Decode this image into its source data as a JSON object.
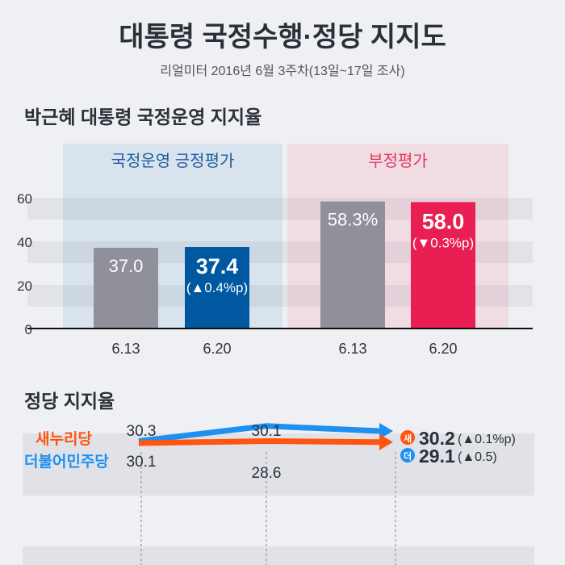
{
  "title": "대통령 국정수행·정당 지지도",
  "subtitle": "리얼미터 2016년 6월 3주차(13일~17일 조사)",
  "chart_data": [
    {
      "type": "bar",
      "title": "박근혜 대통령 국정운영 지지율",
      "groups": [
        {
          "label": "국정운영 긍정평가",
          "color": "#0058a0",
          "categories": [
            "6.13",
            "6.20"
          ],
          "values": [
            37.0,
            37.4
          ],
          "labels": [
            "37.0",
            "37.4"
          ],
          "change": "(▲0.4%p)"
        },
        {
          "label": "부정평가",
          "color": "#e91e52",
          "categories": [
            "6.13",
            "6.20"
          ],
          "values": [
            58.3,
            58.0
          ],
          "labels": [
            "58.3%",
            "58.0"
          ],
          "change": "(▼0.3%p)"
        }
      ],
      "prev_color": "#8f9099",
      "yticks": [
        "0",
        "20",
        "40",
        "60"
      ],
      "ylim": [
        0,
        60
      ]
    },
    {
      "type": "line",
      "title": "정당 지지율",
      "series": [
        {
          "name": "새누리당",
          "badge": "새",
          "color": "#ff5511",
          "values": [
            30.3,
            30.1,
            30.2
          ],
          "labels": [
            "30.3",
            "30.1",
            "30.2"
          ],
          "change": "(▲0.1%p)"
        },
        {
          "name": "더불어민주당",
          "badge": "더",
          "color": "#1e90f0",
          "values": [
            30.1,
            28.6,
            29.1
          ],
          "labels": [
            "30.1",
            "28.6",
            "29.1"
          ],
          "change": "(▲0.5)"
        }
      ]
    }
  ]
}
